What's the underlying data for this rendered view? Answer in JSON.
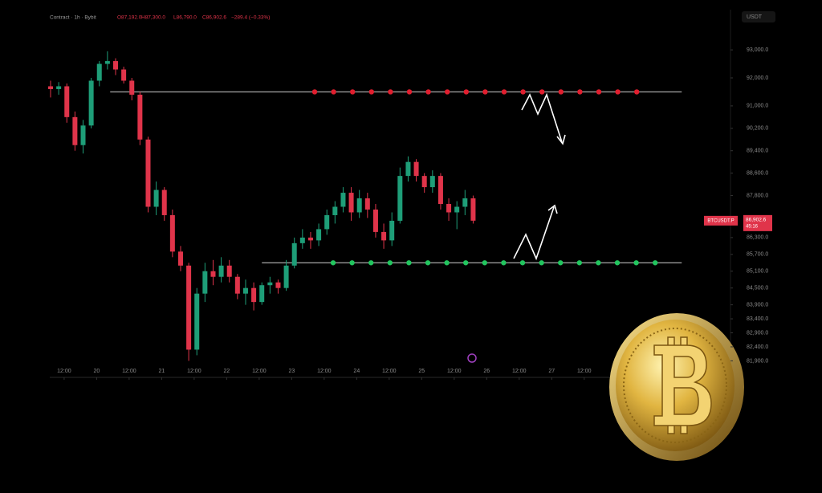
{
  "chart_data": {
    "type": "candlestick",
    "header": {
      "title": "Contract · 1h · Bybit",
      "open": "O87,192.0",
      "high": "H87,300.0",
      "low": "L86,790.0",
      "close": "C86,902.6",
      "change": "−289.4 (−0.33%)"
    },
    "currency": "USDT",
    "symbol": "BTCUSDT.P",
    "last_price": 86902.6,
    "last_price_label": "86,902.6",
    "countdown": "45:16",
    "x": [
      -5,
      -2,
      1,
      4,
      7,
      10,
      13,
      16,
      19,
      22,
      25,
      28,
      31,
      34,
      37,
      40,
      43,
      46,
      49,
      52,
      55,
      58,
      61,
      64,
      67,
      70,
      73,
      76,
      79,
      82,
      85,
      88,
      91,
      94,
      97,
      100,
      103,
      106,
      109,
      112,
      115,
      118,
      121,
      124,
      127,
      130,
      133,
      136,
      139,
      142,
      145,
      148,
      151
    ],
    "open": [
      91700,
      91600,
      91700,
      90600,
      89600,
      90300,
      91900,
      92500,
      92600,
      92300,
      91900,
      91400,
      89800,
      87400,
      88000,
      87100,
      85800,
      85300,
      82300,
      84300,
      85100,
      84900,
      85300,
      84900,
      84300,
      84500,
      84000,
      84600,
      84700,
      84500,
      85300,
      86100,
      86300,
      86200,
      86600,
      87100,
      87400,
      87900,
      87200,
      87700,
      87300,
      86500,
      86200,
      86900,
      88500,
      89000,
      88500,
      88100,
      88500,
      87500,
      87200,
      87400,
      87700
    ],
    "high": [
      91900,
      91850,
      91800,
      90800,
      90500,
      92000,
      92600,
      92950,
      92700,
      92400,
      92000,
      91500,
      89900,
      88300,
      88100,
      87300,
      86000,
      85400,
      84500,
      85400,
      85500,
      85600,
      85500,
      85000,
      84800,
      84700,
      84700,
      84900,
      84800,
      85500,
      86300,
      86600,
      86500,
      86800,
      87300,
      87600,
      88100,
      88100,
      88000,
      87900,
      87500,
      86800,
      87200,
      88800,
      89200,
      89100,
      88600,
      88700,
      88600,
      87700,
      87600,
      88000,
      87800
    ],
    "low": [
      91300,
      91400,
      90400,
      89400,
      89300,
      90200,
      91700,
      92300,
      92100,
      91800,
      91200,
      89600,
      87200,
      87100,
      86900,
      85600,
      85100,
      81900,
      82100,
      84000,
      84600,
      84700,
      84700,
      84100,
      83900,
      83700,
      83900,
      84300,
      84300,
      84400,
      85200,
      85900,
      85900,
      86000,
      86400,
      86800,
      87200,
      86900,
      87000,
      87000,
      86300,
      85900,
      86000,
      86800,
      88300,
      88300,
      87900,
      87900,
      87300,
      86900,
      86600,
      87100,
      86800
    ],
    "close": [
      91600,
      91700,
      90600,
      89600,
      90300,
      91900,
      92500,
      92600,
      92300,
      91900,
      91400,
      89800,
      87400,
      88000,
      87100,
      85800,
      85300,
      82300,
      84300,
      85100,
      84900,
      85300,
      84900,
      84300,
      84500,
      84000,
      84600,
      84700,
      84500,
      85300,
      86100,
      86300,
      86200,
      86600,
      87100,
      87400,
      87900,
      87200,
      87700,
      87300,
      86500,
      86200,
      86900,
      88500,
      89000,
      88500,
      88100,
      88500,
      87500,
      87200,
      87400,
      87700,
      86902.6
    ],
    "up_color": "#1e9e78",
    "down_color": "#e0344a",
    "levels": [
      {
        "value": 91500,
        "start": 17,
        "end": 228,
        "color": "#e01e2e"
      },
      {
        "value": 85400,
        "start": 73,
        "end": 228,
        "color": "#22c55e"
      }
    ],
    "xlim": [
      -5.3,
      246
    ],
    "ylim": [
      81310,
      94350
    ],
    "xticks": [
      {
        "value": 0,
        "label": "12:00"
      },
      {
        "value": 12,
        "label": "20"
      },
      {
        "value": 24,
        "label": "12:00"
      },
      {
        "value": 36,
        "label": "21"
      },
      {
        "value": 48,
        "label": "12:00"
      },
      {
        "value": 60,
        "label": "22"
      },
      {
        "value": 72,
        "label": "12:00"
      },
      {
        "value": 84,
        "label": "23"
      },
      {
        "value": 96,
        "label": "12:00"
      },
      {
        "value": 108,
        "label": "24"
      },
      {
        "value": 120,
        "label": "12:00"
      },
      {
        "value": 132,
        "label": "25"
      },
      {
        "value": 144,
        "label": "12:00"
      },
      {
        "value": 156,
        "label": "26"
      },
      {
        "value": 168,
        "label": "12:00"
      },
      {
        "value": 180,
        "label": "27"
      },
      {
        "value": 192,
        "label": "12:00"
      }
    ],
    "yticks": [
      {
        "value": 93000,
        "label": "93,000.0"
      },
      {
        "value": 92000,
        "label": "92,000.0"
      },
      {
        "value": 91000,
        "label": "91,000.0"
      },
      {
        "value": 90200,
        "label": "90,200.0"
      },
      {
        "value": 89400,
        "label": "89,400.0"
      },
      {
        "value": 88600,
        "label": "88,600.0"
      },
      {
        "value": 87800,
        "label": "87,800.0"
      },
      {
        "value": 86300,
        "label": "86,300.0"
      },
      {
        "value": 85700,
        "label": "85,700.0"
      },
      {
        "value": 85100,
        "label": "85,100.0"
      },
      {
        "value": 84500,
        "label": "84,500.0"
      },
      {
        "value": 83900,
        "label": "83,900.0"
      },
      {
        "value": 83400,
        "label": "83,400.0"
      },
      {
        "value": 82900,
        "label": "82,900.0"
      },
      {
        "value": 82400,
        "label": "82,400.0"
      },
      {
        "value": 81900,
        "label": "81,900.0"
      }
    ]
  }
}
